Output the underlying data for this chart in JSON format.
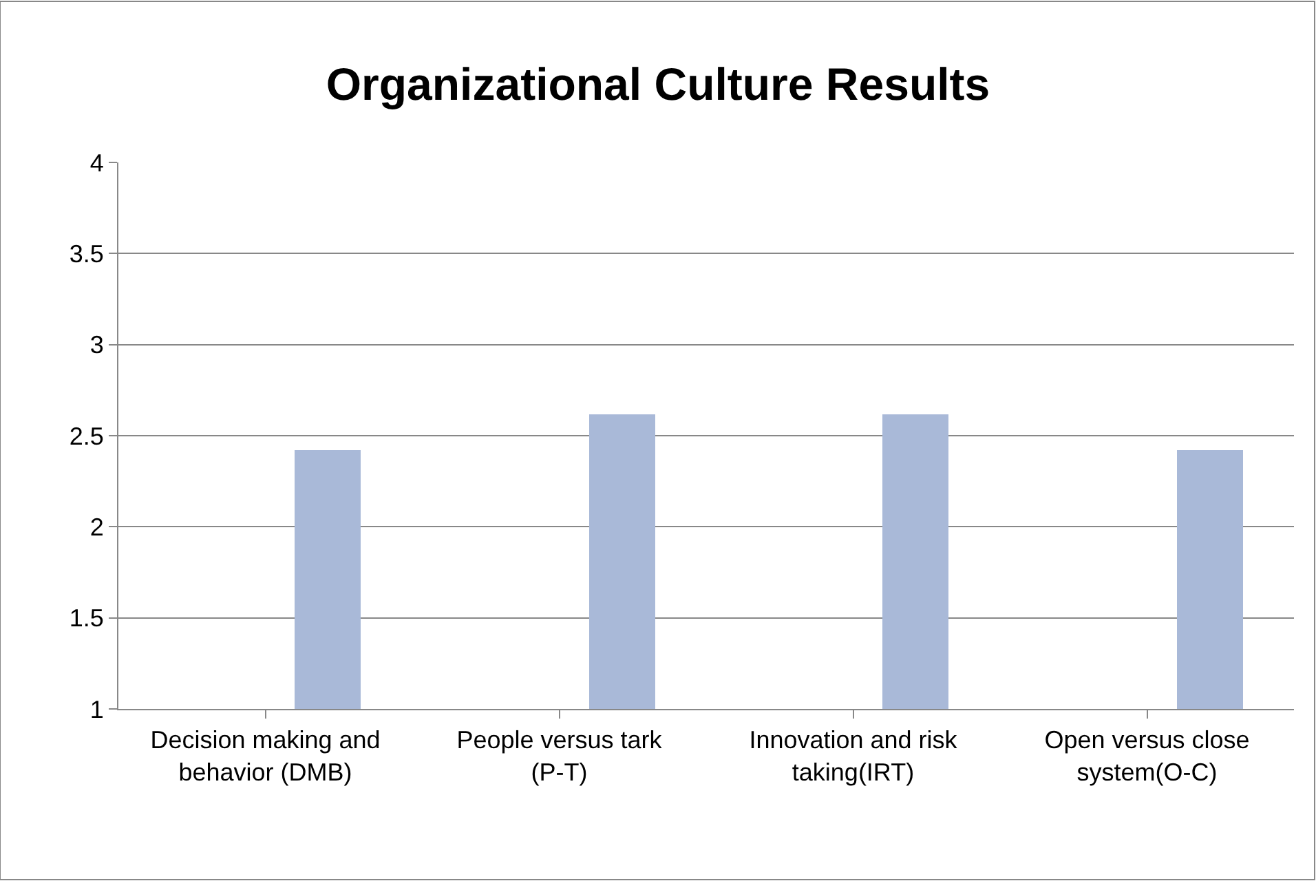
{
  "chart_data": {
    "type": "bar",
    "title": "Organizational Culture Results",
    "categories": [
      "Decision making and behavior (DMB)",
      "People versus tark (P-T)",
      "Innovation and risk taking(IRT)",
      "Open versus close system(O-C)"
    ],
    "values": [
      2.42,
      2.62,
      2.62,
      2.42
    ],
    "color": "#a9b9d8",
    "ylim": [
      1,
      4
    ],
    "yticks": [
      1,
      1.5,
      2,
      2.5,
      3,
      3.5,
      4
    ],
    "grid": "y"
  }
}
